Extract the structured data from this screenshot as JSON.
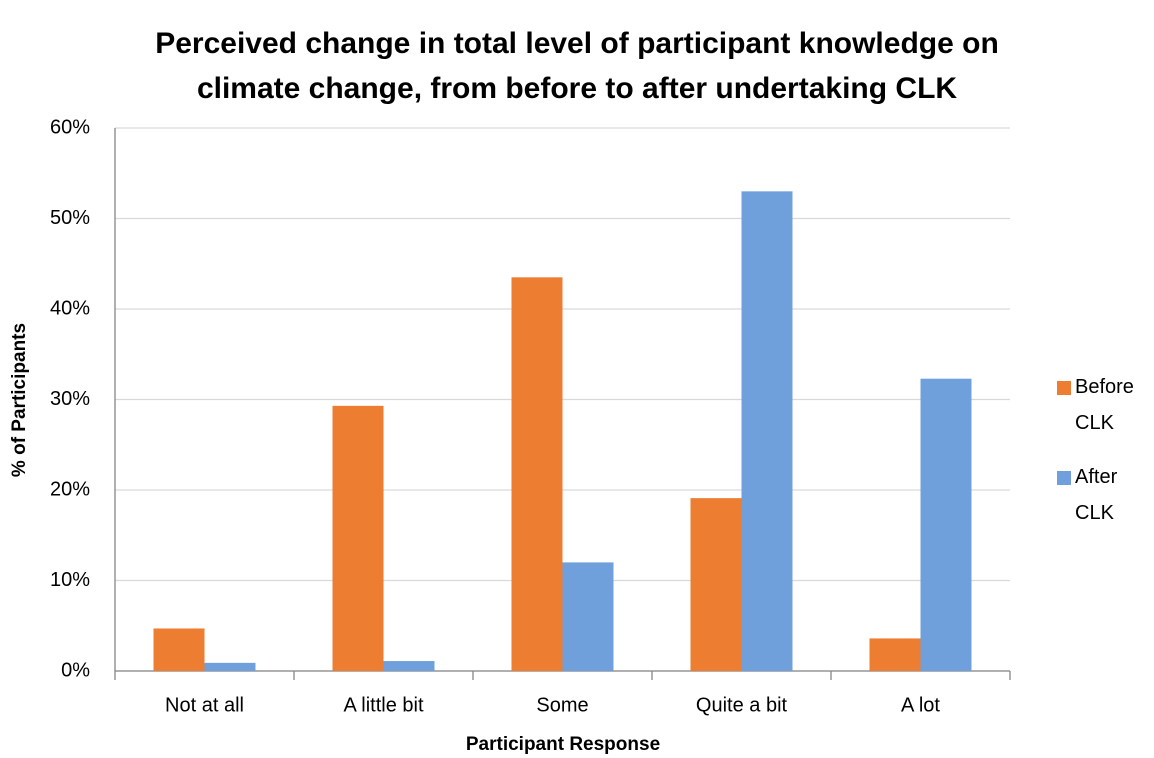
{
  "chart_data": {
    "type": "bar",
    "title": "Perceived change in total level of participant knowledge on climate change, from before to after undertaking CLK",
    "x_label": "Participant Response",
    "y_label": "% of Participants",
    "categories": [
      "Not at all",
      "A little bit",
      "Some",
      "Quite a bit",
      "A lot"
    ],
    "series": [
      {
        "name": "Before CLK",
        "color": "#ed7d31",
        "values": [
          4.7,
          29.3,
          43.5,
          19.1,
          3.6
        ]
      },
      {
        "name": "After CLK",
        "color": "#6fa0dc",
        "values": [
          0.9,
          1.1,
          12.0,
          53.0,
          32.3
        ]
      }
    ],
    "ylim": [
      0,
      60
    ],
    "yticks": [
      {
        "value": 0,
        "label": "0%"
      },
      {
        "value": 10,
        "label": "10%"
      },
      {
        "value": 20,
        "label": "20%"
      },
      {
        "value": 30,
        "label": "30%"
      },
      {
        "value": 40,
        "label": "40%"
      },
      {
        "value": 50,
        "label": "50%"
      },
      {
        "value": 60,
        "label": "60%"
      }
    ],
    "grid": true,
    "legend": "right"
  }
}
